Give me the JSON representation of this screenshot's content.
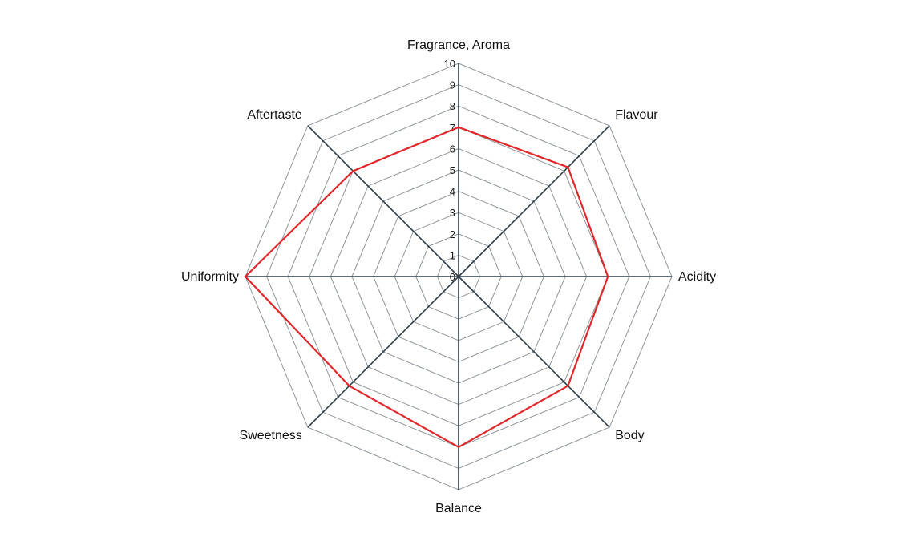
{
  "chart_data": {
    "type": "radar",
    "title": "",
    "axes": [
      "Fragrance, Aroma",
      "Flavour",
      "Acidity",
      "Body",
      "Balance",
      "Sweetness",
      "Uniformity",
      "Aftertaste"
    ],
    "ticks": [
      "0",
      "1",
      "2",
      "3",
      "4",
      "5",
      "6",
      "7",
      "8",
      "9",
      "10"
    ],
    "range": [
      0,
      10
    ],
    "grid": true,
    "series": [
      {
        "values": [
          7,
          7.25,
          7,
          7.25,
          8,
          7.25,
          10,
          7
        ],
        "color": "#e0272b"
      }
    ]
  }
}
